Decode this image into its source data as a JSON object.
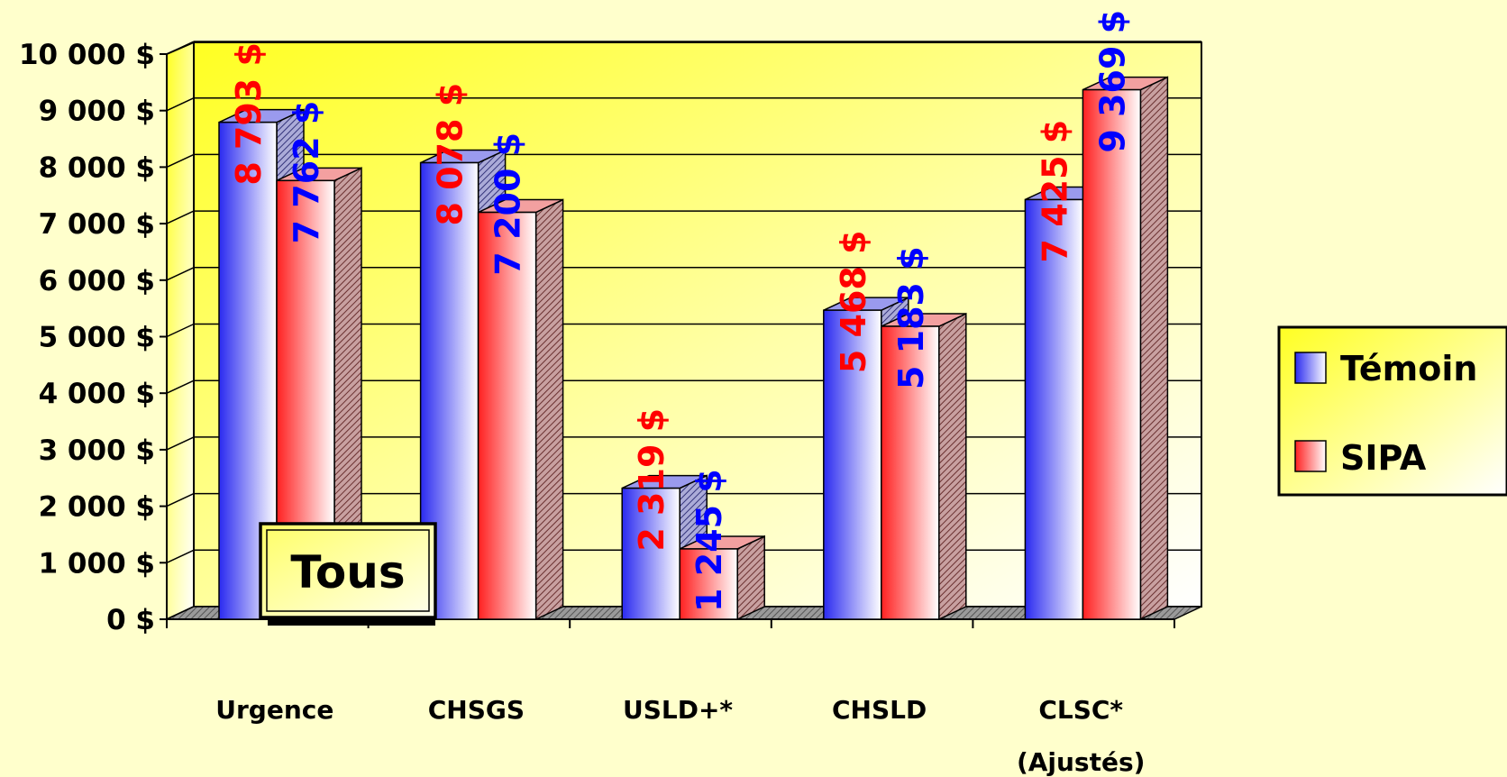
{
  "chart_data": {
    "type": "bar",
    "style": "3d-clustered-column",
    "categories": [
      "Urgence",
      "CHSGS",
      "USLD+*",
      "CHSLD",
      "CLSC*"
    ],
    "category_sublabels": [
      "",
      "",
      "",
      "",
      "(Ajustés)"
    ],
    "series": [
      {
        "name": "Témoin",
        "values": [
          8793,
          8078,
          2319,
          5468,
          7425
        ],
        "color": "#0000FF",
        "label_color": "#FF0000"
      },
      {
        "name": "SIPA",
        "values": [
          7762,
          7200,
          1245,
          5183,
          9369
        ],
        "color": "#FF0000",
        "label_color": "#0000FF"
      }
    ],
    "data_labels": [
      [
        "8 793 $",
        "8 078 $",
        "2 319 $",
        "5 468 $",
        "7 425 $"
      ],
      [
        "7 762 $",
        "7 200 $",
        "1 245 $",
        "5 183 $",
        "9 369 $"
      ]
    ],
    "yticks": [
      "0 $",
      "1 000 $",
      "2 000 $",
      "3 000 $",
      "4 000 $",
      "5 000 $",
      "6 000 $",
      "7 000 $",
      "8 000 $",
      "9 000 $",
      "10 000 $"
    ],
    "ylim": [
      0,
      10000
    ],
    "ystep": 1000,
    "grid": true,
    "legend_position": "right",
    "annotation": "Tous",
    "background_color": "#FFFFCC",
    "plot_gradient": [
      "#FFFF33",
      "#FFFFFF"
    ]
  }
}
